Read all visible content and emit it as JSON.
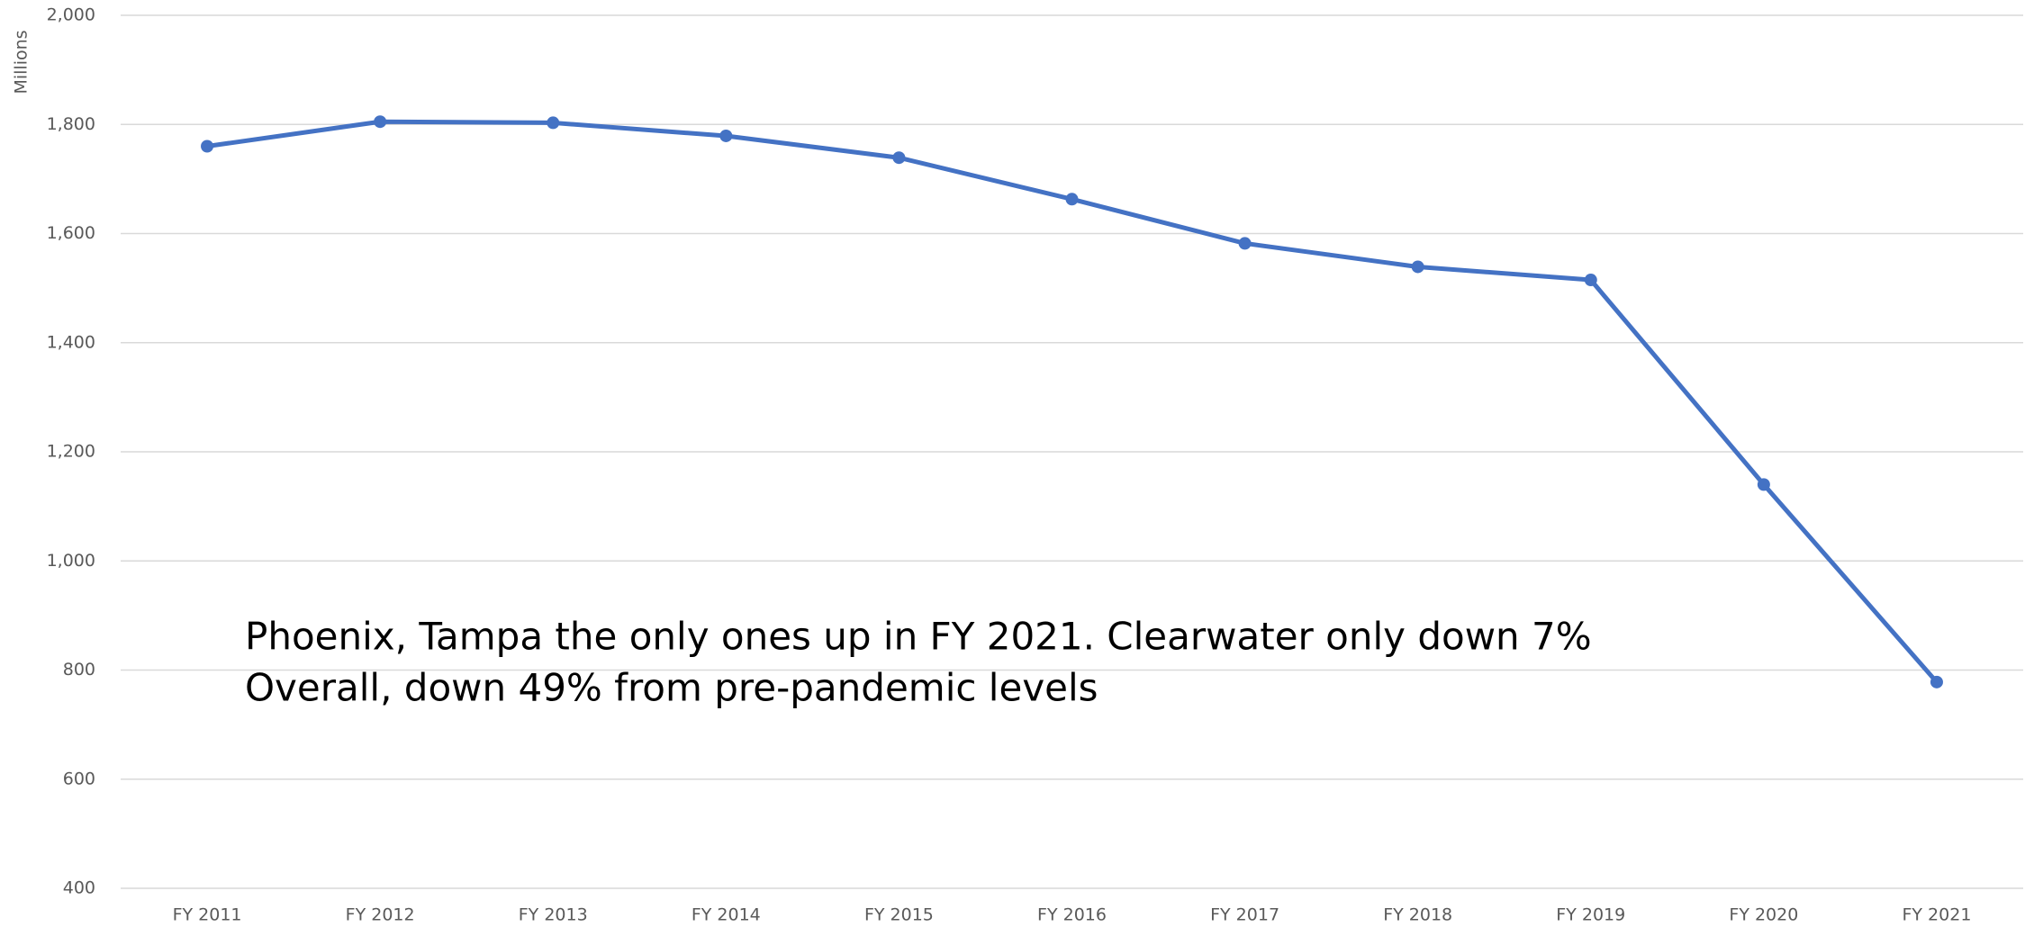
{
  "chart_data": {
    "type": "line",
    "y_axis_label": "Millions",
    "annotations": [
      "Phoenix, Tampa the only ones up in FY 2021.  Clearwater only down 7%",
      "Overall, down 49% from pre-pandemic levels"
    ],
    "categories": [
      "FY 2011",
      "FY 2012",
      "FY 2013",
      "FY 2014",
      "FY 2015",
      "FY 2016",
      "FY 2017",
      "FY 2018",
      "FY 2019",
      "FY 2020",
      "FY 2021"
    ],
    "series": [
      {
        "color": "#4472c4",
        "values": [
          1760,
          1805,
          1803,
          1779,
          1739,
          1663,
          1582,
          1539,
          1515,
          1140,
          778
        ]
      }
    ],
    "ylim": [
      400,
      2000
    ],
    "yticks": [
      400,
      600,
      800,
      {
        "value": 1000,
        "label": "1,000"
      },
      {
        "value": 1200,
        "label": "1,200"
      },
      {
        "value": 1400,
        "label": "1,400"
      },
      {
        "value": 1600,
        "label": "1,600"
      },
      {
        "value": 1800,
        "label": "1,800"
      },
      {
        "value": 2000,
        "label": "2,000"
      }
    ],
    "grid": true
  }
}
